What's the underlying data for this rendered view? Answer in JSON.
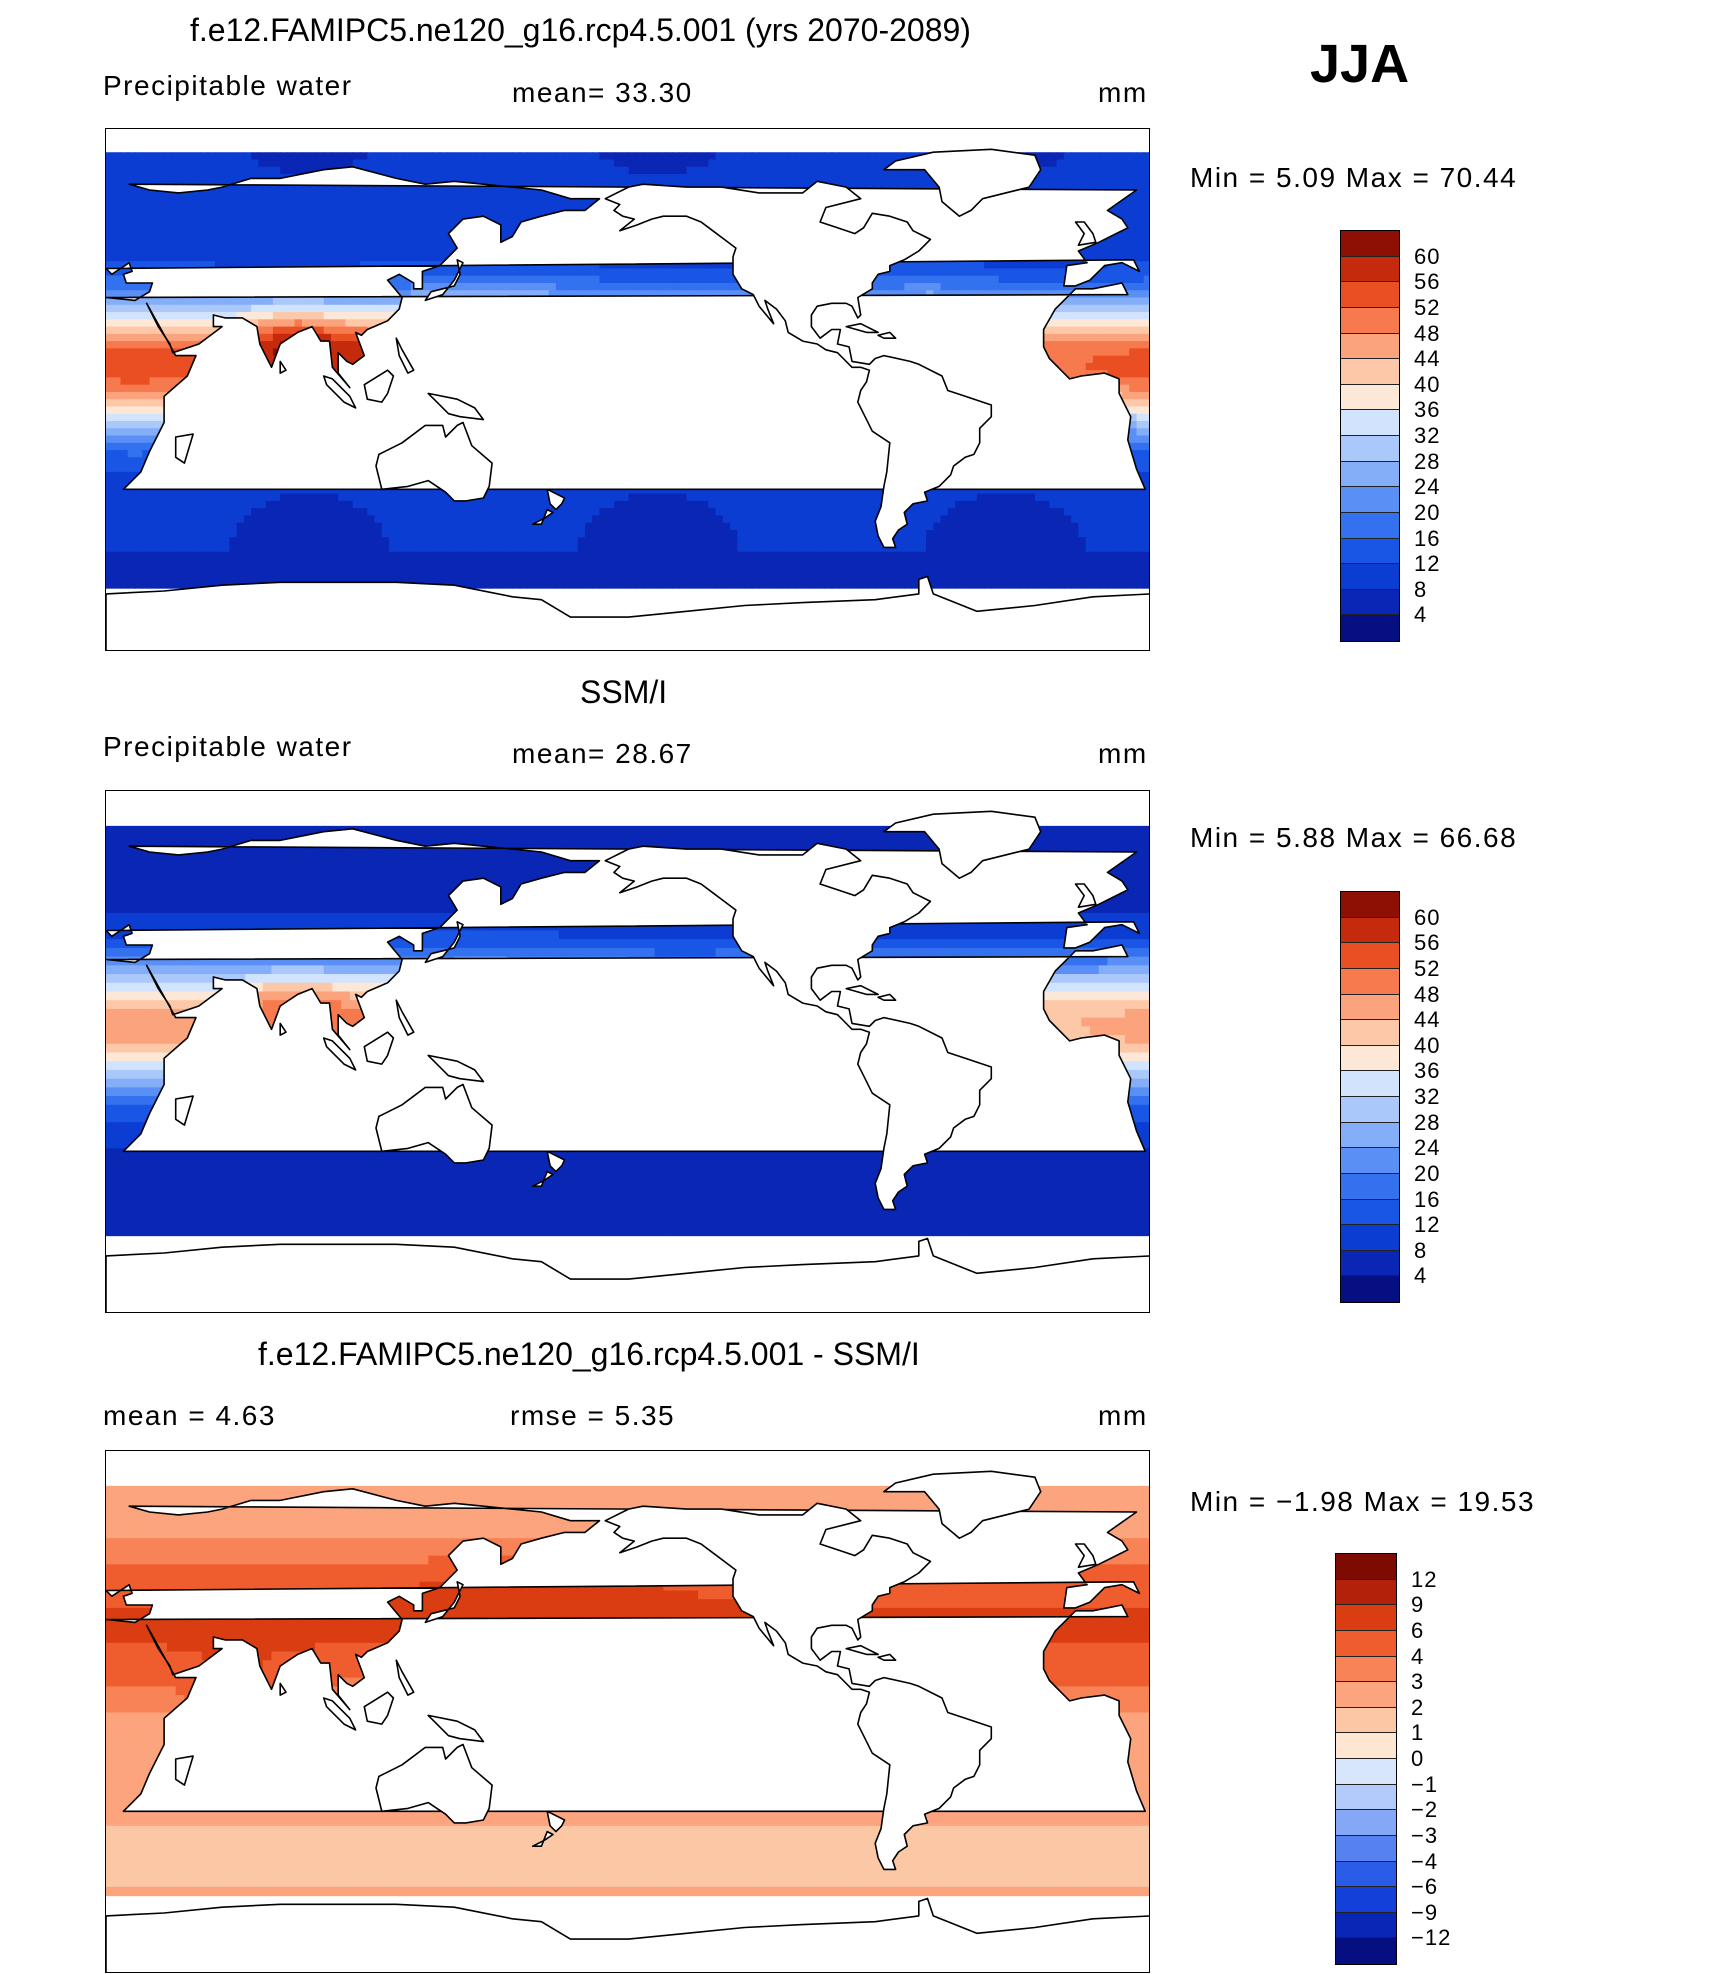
{
  "season": "JJA",
  "panels": [
    {
      "id": "model",
      "title": "f.e12.FAMIPC5.ne120_g16.rcp4.5.001 (yrs 2070-2089)",
      "left_label": "Precipitable water",
      "center_label": "mean=  33.30",
      "units": "mm",
      "minmax": "Min =    5.09  Max =   70.44",
      "palette": "full",
      "field_mode": "model",
      "colorbar_ticks": [
        "60",
        "56",
        "52",
        "48",
        "44",
        "40",
        "36",
        "32",
        "28",
        "24",
        "20",
        "16",
        "12",
        "8",
        "4"
      ]
    },
    {
      "id": "obs",
      "title": "SSM/I",
      "left_label": "Precipitable water",
      "center_label": "mean=  28.67",
      "units": "mm",
      "minmax": "Min =    5.88  Max =   66.68",
      "palette": "full",
      "field_mode": "obs",
      "colorbar_ticks": [
        "60",
        "56",
        "52",
        "48",
        "44",
        "40",
        "36",
        "32",
        "28",
        "24",
        "20",
        "16",
        "12",
        "8",
        "4"
      ]
    },
    {
      "id": "diff",
      "title": "f.e12.FAMIPC5.ne120_g16.rcp4.5.001 - SSM/I",
      "left_label": "mean =    4.63",
      "center_label": "rmse =    5.35",
      "units": "mm",
      "minmax": "Min =  −1.98  Max =   19.53",
      "palette": "diff",
      "field_mode": "diff",
      "colorbar_ticks": [
        "12",
        "9",
        "6",
        "4",
        "3",
        "2",
        "1",
        "0",
        "−1",
        "−2",
        "−3",
        "−4",
        "−6",
        "−9",
        "−12"
      ]
    }
  ],
  "colors": {
    "full": [
      "#050f82",
      "#0a26b4",
      "#0c3dd2",
      "#1a56e6",
      "#3371ef",
      "#5a8ff5",
      "#84aef8",
      "#abc8fb",
      "#d2e3fd",
      "#fde8d8",
      "#fcc8a8",
      "#fba37c",
      "#f77a4e",
      "#ea4f23",
      "#c62a0c",
      "#8e0f03"
    ],
    "diff": [
      "#050f82",
      "#0a26b4",
      "#1240d8",
      "#2b5ce8",
      "#5582f0",
      "#84a8f6",
      "#b2cbfa",
      "#d8e6fc",
      "#fde6d2",
      "#fcc7a4",
      "#fba47d",
      "#f78356",
      "#ef5d2e",
      "#da3d12",
      "#b4210a",
      "#7e0b02"
    ]
  }
}
